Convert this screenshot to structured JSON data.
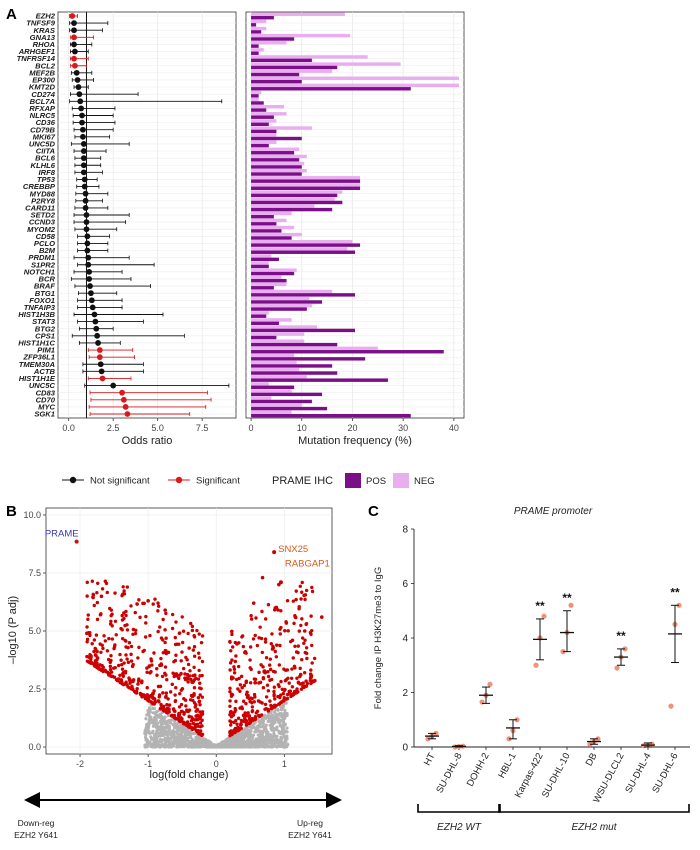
{
  "panels": {
    "a": {
      "letter": "A",
      "xlabel_odds": "Odds ratio",
      "xlabel_freq": "Mutation frequency (%)",
      "legend_not_sig": "Not significant",
      "legend_sig": "Significant",
      "legend_ihc_title": "PRAME IHC",
      "legend_pos": "POS",
      "legend_neg": "NEG",
      "odds_ticks": [
        "0.0",
        "2.5",
        "5.0",
        "7.5"
      ],
      "freq_ticks": [
        "0",
        "10",
        "20",
        "30",
        "40"
      ]
    },
    "b": {
      "letter": "B",
      "ylabel": "–log10 (P adj)",
      "xlabel": "log(fold change)",
      "down_label_1": "Down-reg",
      "down_label_2": "EZH2 Y641",
      "up_label_1": "Up-reg",
      "up_label_2": "EZH2 Y641",
      "y_ticks": [
        "0.0",
        "2.5",
        "5.0",
        "7.5",
        "10.0"
      ],
      "x_ticks": [
        "-2",
        "-1",
        "0",
        "1"
      ]
    },
    "c": {
      "letter": "C",
      "title": "PRAME promoter",
      "ylabel": "Fold change IP H3K27me3 to IgG",
      "y_ticks": [
        "0",
        "2",
        "4",
        "6",
        "8"
      ],
      "group_wt": "EZH2 WT",
      "group_mut": "EZH2 mut",
      "sig_label": "**"
    }
  },
  "colors": {
    "black": "#111111",
    "red": "#d7191c",
    "pos": "#7b0f88",
    "neg": "#e8aef0",
    "volcano_sig": "#cc0000",
    "volcano_ns": "#b3b3b3",
    "prame_blue": "#3a3aa8",
    "up_orange": "#d85a1a",
    "c_point": "#f0927a"
  },
  "chart_data": [
    {
      "type": "scatter",
      "name": "forest-odds-ratio",
      "xlabel": "Odds ratio",
      "xlim": [
        -0.6,
        9.4
      ],
      "reference_line": 1,
      "genes": [
        "EZH2",
        "TNFSF9",
        "KRAS",
        "GNA13",
        "RHOA",
        "ARHGEF1",
        "TNFRSF14",
        "BCL2",
        "MEF2B",
        "EP300",
        "KMT2D",
        "CD274",
        "BCL7A",
        "RFXAP",
        "NLRC5",
        "CD36",
        "CD79B",
        "MKI67",
        "UNC5D",
        "CIITA",
        "BCL6",
        "KLHL6",
        "IRF8",
        "TP53",
        "CREBBP",
        "MYD88",
        "P2RY8",
        "CARD11",
        "SETD2",
        "CCND3",
        "MYOM2",
        "CD58",
        "PCLO",
        "B2M",
        "PRDM1",
        "S1PR2",
        "NOTCH1",
        "BCR",
        "BRAF",
        "BTG1",
        "FOXO1",
        "TNFAIP3",
        "HIST1H3B",
        "STAT3",
        "BTG2",
        "CPS1",
        "HIST1H1C",
        "PIM1",
        "ZFP36L1",
        "TMEM30A",
        "ACTB",
        "HIST1H1E",
        "UNC5C",
        "CD83",
        "CD70",
        "MYC",
        "SGK1"
      ],
      "odds": [
        0.2,
        0.3,
        0.3,
        0.3,
        0.3,
        0.35,
        0.3,
        0.35,
        0.45,
        0.5,
        0.55,
        0.6,
        0.65,
        0.7,
        0.75,
        0.75,
        0.8,
        0.8,
        0.85,
        0.85,
        0.85,
        0.85,
        0.85,
        0.9,
        0.9,
        0.95,
        0.95,
        0.95,
        1.0,
        1.0,
        1.0,
        1.05,
        1.05,
        1.05,
        1.1,
        1.1,
        1.15,
        1.15,
        1.2,
        1.25,
        1.3,
        1.35,
        1.45,
        1.5,
        1.55,
        1.6,
        1.65,
        1.75,
        1.75,
        1.8,
        1.85,
        1.9,
        2.5,
        3.0,
        3.1,
        3.2,
        3.3
      ],
      "ci_low": [
        0.05,
        0.05,
        0.05,
        0.1,
        0.1,
        0.1,
        0.1,
        0.1,
        0.15,
        0.2,
        0.3,
        0.1,
        0.05,
        0.2,
        0.25,
        0.25,
        0.3,
        0.35,
        0.15,
        0.3,
        0.35,
        0.35,
        0.35,
        0.45,
        0.45,
        0.4,
        0.4,
        0.35,
        0.3,
        0.3,
        0.35,
        0.5,
        0.5,
        0.5,
        0.3,
        0.5,
        0.3,
        0.15,
        0.35,
        0.55,
        0.5,
        0.5,
        0.3,
        0.5,
        0.6,
        0.2,
        0.6,
        1.1,
        1.15,
        0.8,
        0.8,
        1.1,
        0.9,
        1.2,
        1.25,
        1.15,
        1.2
      ],
      "ci_high": [
        0.5,
        2.2,
        1.9,
        1.4,
        1.3,
        1.1,
        1.1,
        1.0,
        1.3,
        1.4,
        1.1,
        3.9,
        8.6,
        2.6,
        2.5,
        2.6,
        2.5,
        2.3,
        3.4,
        2.1,
        1.8,
        1.8,
        1.9,
        1.6,
        1.7,
        2.2,
        1.9,
        2.2,
        3.4,
        3.2,
        2.7,
        2.3,
        2.2,
        2.2,
        3.4,
        4.8,
        3.0,
        3.5,
        4.6,
        2.7,
        3.0,
        3.0,
        5.3,
        4.2,
        2.5,
        6.5,
        2.9,
        3.6,
        3.7,
        4.2,
        4.2,
        3.5,
        9.0,
        7.8,
        8.0,
        7.7,
        6.8
      ],
      "significant": [
        true,
        false,
        false,
        true,
        false,
        false,
        true,
        true,
        false,
        false,
        false,
        false,
        false,
        false,
        false,
        false,
        false,
        false,
        false,
        false,
        false,
        false,
        false,
        false,
        false,
        false,
        false,
        false,
        false,
        false,
        false,
        false,
        false,
        false,
        false,
        false,
        false,
        false,
        false,
        false,
        false,
        false,
        false,
        false,
        false,
        false,
        false,
        true,
        true,
        false,
        false,
        true,
        false,
        true,
        true,
        true,
        true
      ]
    },
    {
      "type": "bar",
      "name": "mutation-frequency",
      "xlabel": "Mutation frequency (%)",
      "xlim": [
        -1,
        42
      ],
      "categories": [
        "EZH2",
        "TNFSF9",
        "KRAS",
        "GNA13",
        "RHOA",
        "ARHGEF1",
        "TNFRSF14",
        "BCL2",
        "MEF2B",
        "EP300",
        "KMT2D",
        "CD274",
        "BCL7A",
        "RFXAP",
        "NLRC5",
        "CD36",
        "CD79B",
        "MKI67",
        "UNC5D",
        "CIITA",
        "BCL6",
        "KLHL6",
        "IRF8",
        "TP53",
        "CREBBP",
        "MYD88",
        "P2RY8",
        "CARD11",
        "SETD2",
        "CCND3",
        "MYOM2",
        "CD58",
        "PCLO",
        "B2M",
        "PRDM1",
        "S1PR2",
        "NOTCH1",
        "BCR",
        "BRAF",
        "BTG1",
        "FOXO1",
        "TNFAIP3",
        "HIST1H3B",
        "STAT3",
        "BTG2",
        "CPS1",
        "HIST1H1C",
        "PIM1",
        "ZFP36L1",
        "TMEM30A",
        "ACTB",
        "HIST1H1E",
        "UNC5C",
        "CD83",
        "CD70",
        "MYC",
        "SGK1"
      ],
      "series": [
        {
          "name": "POS",
          "values": [
            4.5,
            1,
            2,
            8.5,
            1.5,
            1.5,
            12,
            17,
            9.5,
            10,
            31.5,
            1.5,
            2.5,
            3,
            4.5,
            3.5,
            5,
            10,
            3.5,
            8.5,
            9.5,
            10,
            10,
            21.5,
            21.5,
            17,
            18,
            16,
            4.5,
            5,
            6,
            8,
            21.5,
            20.5,
            5.5,
            3.5,
            8.5,
            7,
            4.5,
            20.5,
            14,
            11,
            3,
            5.5,
            20.5,
            5,
            17,
            38,
            22.5,
            16,
            17,
            27,
            8.5,
            14,
            12,
            15,
            31.5
          ]
        },
        {
          "name": "NEG",
          "values": [
            18.5,
            3,
            3,
            19.5,
            7,
            2.5,
            23,
            29.5,
            16,
            41,
            41,
            2,
            1.5,
            6.5,
            7,
            5,
            12,
            5,
            5,
            9.5,
            11,
            10.5,
            11,
            21.5,
            21.5,
            18,
            16.5,
            12.5,
            8,
            7,
            8.5,
            10,
            20,
            19,
            4,
            3.5,
            9,
            6,
            7,
            16,
            11.5,
            12,
            3.5,
            8,
            13,
            10.5,
            10.5,
            25,
            8.5,
            9,
            9.5,
            11,
            3.5,
            8,
            4,
            10,
            8
          ]
        }
      ]
    },
    {
      "type": "scatter",
      "name": "volcano",
      "xlabel": "log(fold change)",
      "ylabel": "–log10 (P adj)",
      "xlim": [
        -2.5,
        1.7
      ],
      "ylim": [
        -0.3,
        10.3
      ],
      "labeled_points": [
        {
          "label": "PRAME",
          "x": -2.05,
          "y": 8.85,
          "color": "#3a3aa8"
        },
        {
          "label": "SNX25",
          "x": 0.85,
          "y": 8.4,
          "color": "#d85a1a"
        },
        {
          "label": "RABGAP1",
          "x": 0.95,
          "y": 7.1,
          "color": "#d85a1a"
        }
      ],
      "highlight_points": [
        {
          "x": 0.68,
          "y": 7.3
        },
        {
          "x": 0.92,
          "y": 7.0
        },
        {
          "x": 1.55,
          "y": 5.6
        },
        {
          "x": -1.35,
          "y": 6.6
        },
        {
          "x": -1.0,
          "y": 6.3
        },
        {
          "x": -1.7,
          "y": 5.7
        },
        {
          "x": -1.55,
          "y": 5.3
        },
        {
          "x": -0.75,
          "y": 5.9
        },
        {
          "x": 0.55,
          "y": 6.2
        },
        {
          "x": 1.3,
          "y": 5.0
        },
        {
          "x": 1.12,
          "y": 4.6
        },
        {
          "x": -1.9,
          "y": 4.9
        }
      ]
    },
    {
      "type": "scatter",
      "name": "prame-promoter-chip",
      "title": "PRAME promoter",
      "ylabel": "Fold change IP H3K27me3 to IgG",
      "ylim": [
        0,
        8
      ],
      "categories": [
        "HT",
        "SU-DHL-8",
        "DOHH-2",
        "HBL-1",
        "Karpas-422",
        "SU-DHL-10",
        "DB",
        "WSU-DLCL2",
        "SU-DHL-4",
        "SU-DHL-6"
      ],
      "means": [
        0.4,
        0.02,
        1.9,
        0.7,
        3.95,
        4.2,
        0.2,
        3.3,
        0.07,
        4.15
      ],
      "sem_low": [
        0.3,
        0.0,
        1.6,
        0.3,
        3.2,
        3.5,
        0.1,
        3.0,
        0.0,
        3.1
      ],
      "sem_high": [
        0.5,
        0.05,
        2.2,
        1.0,
        4.7,
        5.0,
        0.3,
        3.6,
        0.15,
        5.2
      ],
      "points": [
        [
          0.3,
          0.4,
          0.5
        ],
        [
          0.0,
          0.02,
          0.03
        ],
        [
          1.65,
          1.9,
          2.3
        ],
        [
          0.3,
          0.6,
          1.0
        ],
        [
          3.0,
          4.0,
          4.8
        ],
        [
          3.5,
          4.2,
          5.2
        ],
        [
          0.1,
          0.2,
          0.3
        ],
        [
          2.9,
          3.3,
          3.6
        ],
        [
          0.05,
          0.07,
          0.1
        ],
        [
          1.5,
          4.5,
          5.2
        ]
      ],
      "significant": [
        false,
        false,
        false,
        false,
        true,
        true,
        false,
        true,
        false,
        true
      ],
      "groups": [
        {
          "label": "EZH2 WT",
          "from": 0,
          "to": 2
        },
        {
          "label": "EZH2 mut",
          "from": 3,
          "to": 9
        }
      ]
    }
  ]
}
